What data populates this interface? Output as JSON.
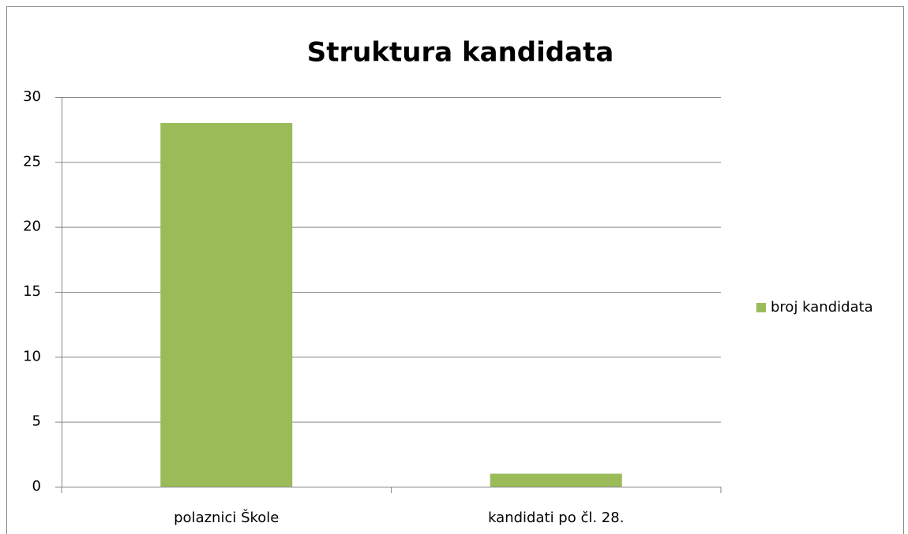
{
  "chart_data": {
    "type": "bar",
    "title": "Struktura kandidata",
    "categories": [
      "polaznici Škole",
      "kandidati po čl. 28."
    ],
    "series": [
      {
        "name": "broj kandidata",
        "color": "#9bbb59",
        "values": [
          28,
          1
        ]
      }
    ],
    "ylim": [
      0,
      30
    ],
    "yticks": [
      0,
      5,
      10,
      15,
      20,
      25,
      30
    ],
    "grid": true,
    "legend": "right"
  }
}
